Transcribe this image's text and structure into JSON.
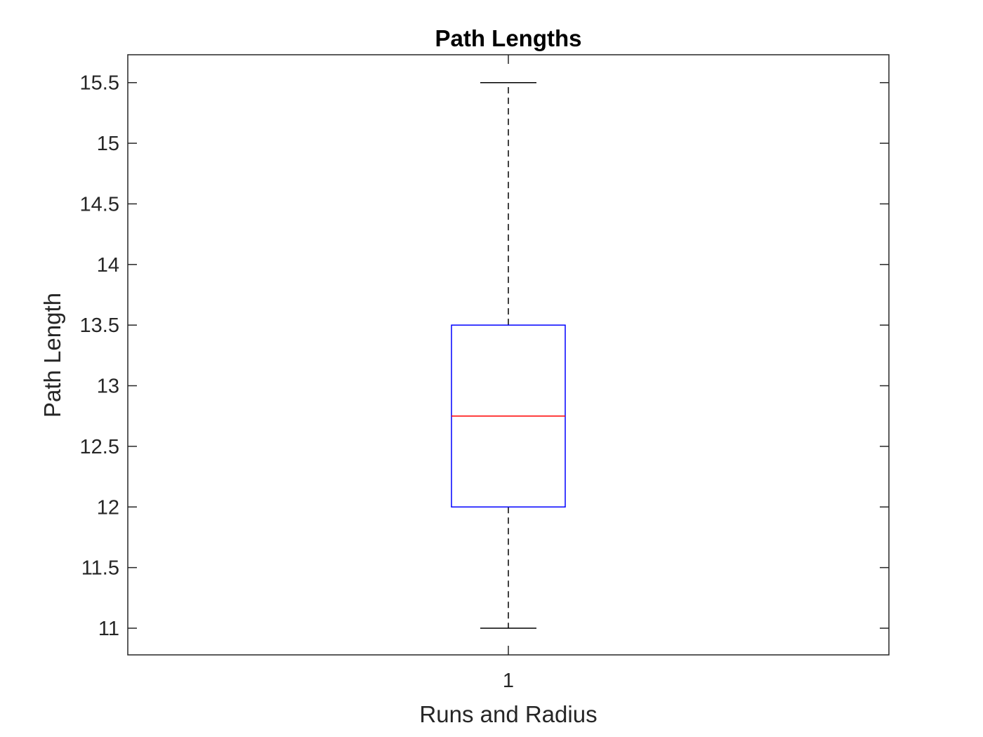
{
  "chart_data": {
    "type": "box",
    "title": "Path Lengths",
    "xlabel": "Runs and Radius",
    "ylabel": "Path Length",
    "categories": [
      "1"
    ],
    "ylim": [
      10.78,
      15.73
    ],
    "yticks": [
      11,
      11.5,
      12,
      12.5,
      13,
      13.5,
      14,
      14.5,
      15,
      15.5
    ],
    "ytick_labels": [
      "11",
      "11.5",
      "12",
      "12.5",
      "13",
      "13.5",
      "14",
      "14.5",
      "15",
      "15.5"
    ],
    "boxes": [
      {
        "category": "1",
        "whisker_low": 11,
        "q1": 12,
        "median": 12.75,
        "q3": 13.5,
        "whisker_high": 15.5
      }
    ],
    "grid": false,
    "colors": {
      "box": "#0000ff",
      "median": "#ff0000",
      "whisker": "#000000",
      "axes": "#262626"
    }
  }
}
